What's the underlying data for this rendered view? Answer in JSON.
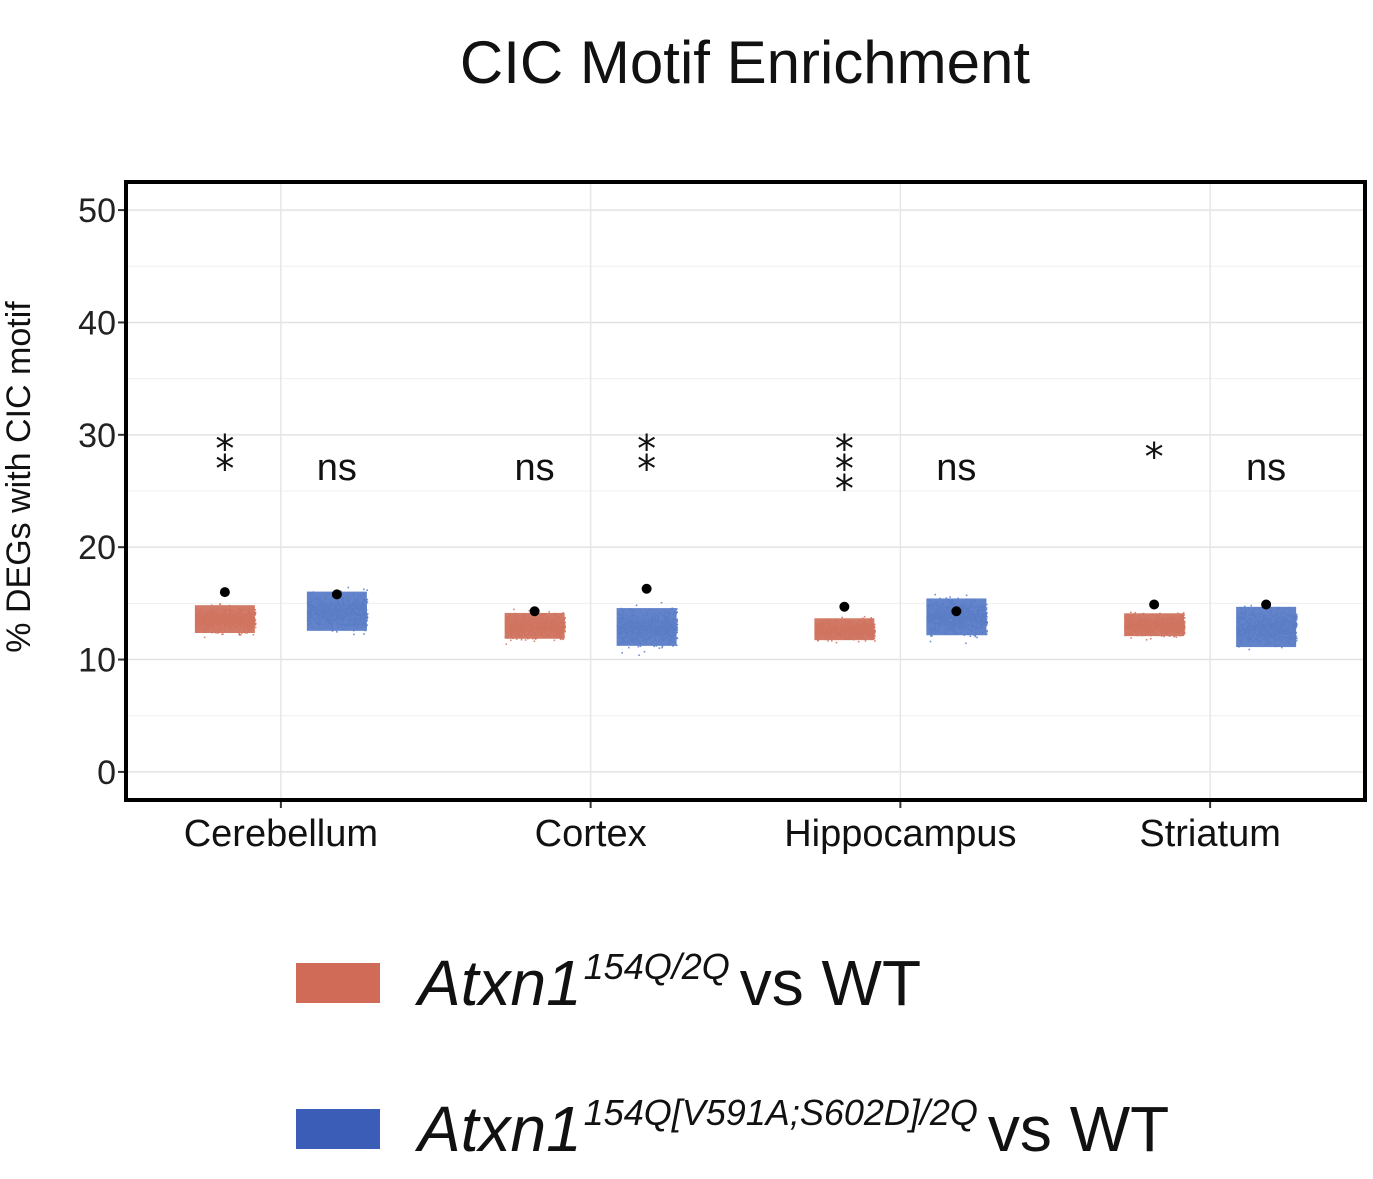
{
  "chart_data": {
    "type": "scatter",
    "title": "CIC Motif Enrichment",
    "ylabel": "% DEGs with CIC motif",
    "xlabel": "",
    "ylim": [
      -2.5,
      52.5
    ],
    "yticks": [
      0,
      10,
      20,
      30,
      40,
      50
    ],
    "grid": true,
    "legend_position": "bottom",
    "categories": [
      "Cerebellum",
      "Cortex",
      "Hippocampus",
      "Striatum"
    ],
    "series": [
      {
        "name": "Atxn1 154Q/2Q vs WT",
        "name_gene": "Atxn1",
        "name_sup": "154Q/2Q",
        "name_suffix": "vs WT",
        "color": "#D07460",
        "observed": [
          16.0,
          14.3,
          14.7,
          14.9
        ],
        "null_range": [
          [
            11.0,
            16.6
          ],
          [
            10.7,
            15.9
          ],
          [
            10.8,
            15.2
          ],
          [
            10.9,
            15.5
          ]
        ],
        "null_center": [
          13.6,
          13.0,
          12.7,
          13.1
        ],
        "significance": [
          "**",
          "ns",
          "***",
          "*"
        ]
      },
      {
        "name": "Atxn1 154Q[V591A;S602D]/2Q vs WT",
        "name_gene": "Atxn1",
        "name_sup": "154Q[V591A;S602D]/2Q",
        "name_suffix": "vs WT",
        "color": "#5B7DC7",
        "observed": [
          15.8,
          16.3,
          14.3,
          14.9
        ],
        "null_range": [
          [
            10.6,
            18.5
          ],
          [
            9.8,
            17.4
          ],
          [
            10.3,
            17.7
          ],
          [
            9.3,
            17.4
          ]
        ],
        "null_center": [
          14.3,
          12.9,
          13.8,
          12.9
        ],
        "significance": [
          "ns",
          "**",
          "ns",
          "ns"
        ]
      }
    ]
  },
  "legend_colors": {
    "series_1": "#D06B58",
    "series_2": "#3B5DB8"
  }
}
